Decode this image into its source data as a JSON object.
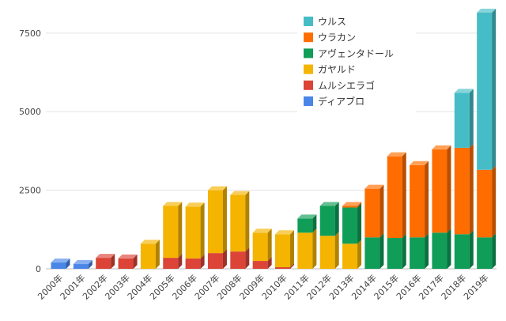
{
  "chart_data": {
    "type": "bar",
    "stacked": true,
    "style": "3d",
    "categories": [
      "2000年",
      "2001年",
      "2002年",
      "2003年",
      "2004年",
      "2005年",
      "2006年",
      "2007年",
      "2008年",
      "2009年",
      "2010年",
      "2011年",
      "2012年",
      "2013年",
      "2014年",
      "2015年",
      "2016年",
      "2017年",
      "2018年",
      "2019年"
    ],
    "series": [
      {
        "name": "ディアブロ",
        "color": "#4a86e8",
        "values": [
          200,
          150,
          0,
          0,
          0,
          0,
          0,
          0,
          0,
          0,
          0,
          0,
          0,
          0,
          0,
          0,
          0,
          0,
          0,
          0
        ]
      },
      {
        "name": "ムルシエラゴ",
        "color": "#db4437",
        "values": [
          0,
          0,
          350,
          330,
          0,
          350,
          330,
          500,
          550,
          250,
          50,
          0,
          0,
          0,
          0,
          0,
          0,
          0,
          0,
          0
        ]
      },
      {
        "name": "ガヤルド",
        "color": "#f4b400",
        "values": [
          0,
          0,
          0,
          0,
          800,
          1650,
          1650,
          2000,
          1800,
          900,
          1050,
          1150,
          1050,
          800,
          0,
          0,
          0,
          0,
          0,
          0
        ]
      },
      {
        "name": "アヴェンタドール",
        "color": "#0f9d58",
        "values": [
          0,
          0,
          0,
          0,
          0,
          0,
          0,
          0,
          0,
          0,
          0,
          450,
          950,
          1150,
          1000,
          980,
          1000,
          1150,
          1100,
          1000
        ]
      },
      {
        "name": "ウラカン",
        "color": "#ff6d00",
        "values": [
          0,
          0,
          0,
          0,
          0,
          0,
          0,
          0,
          0,
          0,
          0,
          0,
          0,
          50,
          1550,
          2600,
          2300,
          2650,
          2750,
          2150
        ]
      },
      {
        "name": "ウルス",
        "color": "#46bdc6",
        "values": [
          0,
          0,
          0,
          0,
          0,
          0,
          0,
          0,
          0,
          0,
          0,
          0,
          0,
          0,
          0,
          0,
          0,
          0,
          1750,
          5000
        ]
      }
    ],
    "legend_order": [
      "ウルス",
      "ウラカン",
      "アヴェンタドール",
      "ガヤルド",
      "ムルシエラゴ",
      "ディアブロ"
    ],
    "y_ticks": [
      0,
      2500,
      5000,
      7500
    ],
    "ylim": [
      0,
      8200
    ],
    "grid": true,
    "legend_position": "top-right",
    "title": "",
    "xlabel": "",
    "ylabel": ""
  }
}
